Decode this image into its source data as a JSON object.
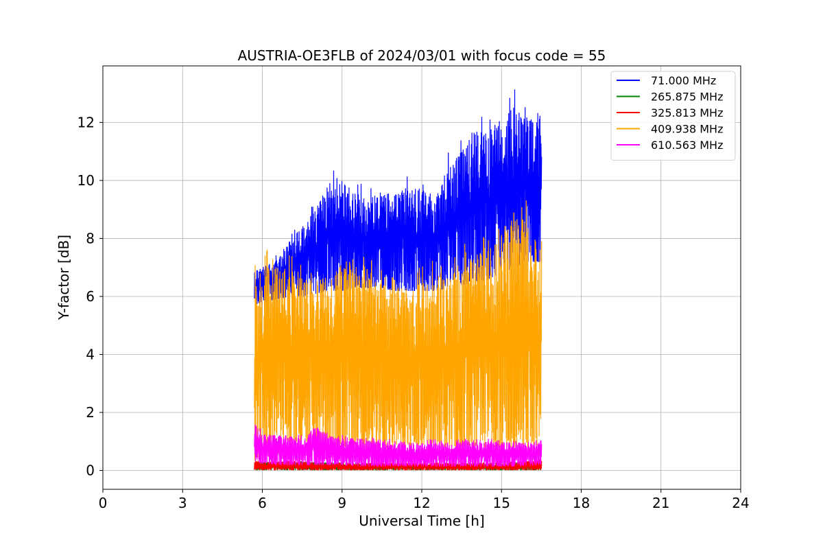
{
  "chart_data": {
    "type": "line",
    "title": "AUSTRIA-OE3FLB of 2024/03/01 with focus code = 55",
    "xlabel": "Universal Time [h]",
    "ylabel": "Y-factor [dB]",
    "xlim": [
      0,
      24
    ],
    "ylim": [
      -0.65,
      13.95
    ],
    "xticks": [
      0,
      3,
      6,
      9,
      12,
      15,
      18,
      21,
      24
    ],
    "yticks": [
      0,
      2,
      4,
      6,
      8,
      10,
      12
    ],
    "grid": true,
    "legend_position": "top-right",
    "series": [
      {
        "name": " 71.000 MHz",
        "color": "#0000ff",
        "x": [
          5.7,
          6.0,
          6.5,
          7.0,
          7.5,
          8.0,
          8.5,
          9.0,
          9.5,
          10.0,
          10.5,
          11.0,
          11.5,
          12.0,
          12.5,
          13.0,
          13.5,
          14.0,
          14.5,
          15.0,
          15.5,
          16.0,
          16.5
        ],
        "high": [
          6.9,
          7.0,
          7.3,
          7.9,
          8.4,
          9.0,
          9.9,
          9.9,
          9.6,
          9.4,
          9.6,
          9.5,
          9.8,
          9.6,
          9.5,
          10.5,
          11.0,
          11.7,
          11.6,
          12.0,
          12.6,
          12.2,
          11.8
        ],
        "low": [
          5.7,
          5.8,
          5.9,
          6.0,
          6.0,
          6.1,
          6.2,
          6.2,
          6.3,
          6.3,
          6.3,
          6.2,
          6.2,
          6.2,
          6.2,
          6.3,
          6.4,
          6.5,
          6.6,
          6.8,
          7.0,
          7.2,
          7.2
        ]
      },
      {
        "name": "265.875 MHz",
        "color": "#008000",
        "x": [
          5.7,
          7.0,
          9.0,
          11.0,
          13.0,
          15.0,
          16.5
        ],
        "high": [
          0.25,
          0.3,
          0.25,
          0.2,
          0.2,
          0.25,
          0.3
        ],
        "low": [
          0.02,
          0.02,
          0.02,
          0.02,
          0.02,
          0.02,
          0.02
        ]
      },
      {
        "name": "325.813 MHz",
        "color": "#ff0000",
        "x": [
          5.7,
          7.0,
          9.0,
          11.0,
          13.0,
          15.0,
          16.5
        ],
        "high": [
          0.3,
          0.3,
          0.25,
          0.25,
          0.25,
          0.25,
          0.35
        ],
        "low": [
          0.02,
          0.02,
          0.02,
          0.02,
          0.02,
          0.02,
          0.02
        ]
      },
      {
        "name": "409.938 MHz",
        "color": "#ffa500",
        "x": [
          5.7,
          6.0,
          6.5,
          7.0,
          7.5,
          8.0,
          8.5,
          9.0,
          9.5,
          10.0,
          10.5,
          11.0,
          11.5,
          12.0,
          12.5,
          13.0,
          13.5,
          14.0,
          14.5,
          15.0,
          15.5,
          16.0,
          16.5
        ],
        "high": [
          6.4,
          7.0,
          7.0,
          6.8,
          6.6,
          6.5,
          6.8,
          7.0,
          6.8,
          6.6,
          6.4,
          6.3,
          6.3,
          6.5,
          6.6,
          6.6,
          7.0,
          7.4,
          7.6,
          8.0,
          9.0,
          8.4,
          7.6
        ],
        "low": [
          0.2,
          0.8,
          1.0,
          1.0,
          1.0,
          1.0,
          0.9,
          0.8,
          0.8,
          0.8,
          0.8,
          0.8,
          0.8,
          0.8,
          0.8,
          0.8,
          0.8,
          0.8,
          0.8,
          0.8,
          0.8,
          0.8,
          0.9
        ]
      },
      {
        "name": "610.563 MHz",
        "color": "#ff00ff",
        "x": [
          5.7,
          6.0,
          6.5,
          7.0,
          7.5,
          8.0,
          8.5,
          9.0,
          9.5,
          10.0,
          10.5,
          11.0,
          11.5,
          12.0,
          12.5,
          13.0,
          13.5,
          14.0,
          14.5,
          15.0,
          15.5,
          16.0,
          16.5
        ],
        "high": [
          1.6,
          1.25,
          1.2,
          1.2,
          1.1,
          1.5,
          1.2,
          1.1,
          1.1,
          1.05,
          1.0,
          1.0,
          0.95,
          0.95,
          1.0,
          0.95,
          1.0,
          1.0,
          1.0,
          0.95,
          0.95,
          0.95,
          0.95
        ],
        "low": [
          0.3,
          0.25,
          0.2,
          0.2,
          0.2,
          0.2,
          0.2,
          0.2,
          0.15,
          0.15,
          0.15,
          0.15,
          0.15,
          0.15,
          0.15,
          0.15,
          0.15,
          0.15,
          0.15,
          0.15,
          0.15,
          0.15,
          0.2
        ]
      }
    ]
  }
}
